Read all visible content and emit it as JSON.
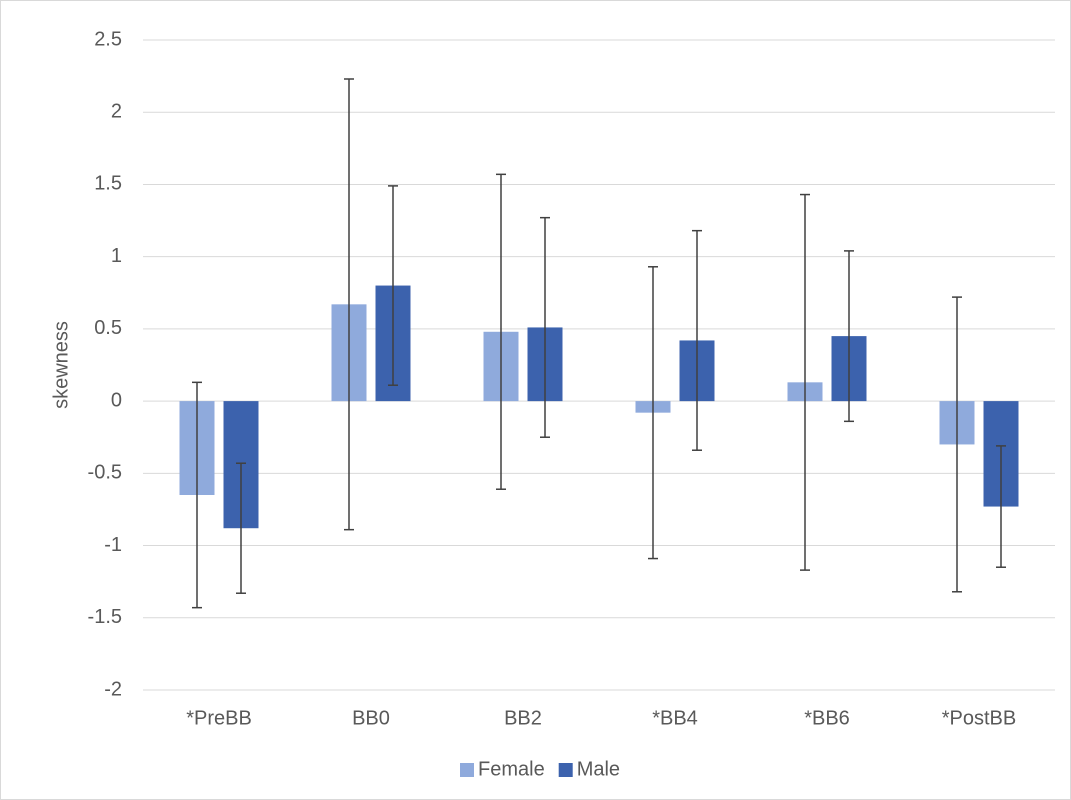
{
  "chart_data": {
    "type": "bar",
    "y_label": "skewness",
    "categories": [
      "*PreBB",
      "BB0",
      "BB2",
      "*BB4",
      "*BB6",
      "*PostBB"
    ],
    "series": [
      {
        "name": "Female",
        "color": "#8faadc",
        "values": [
          -0.65,
          0.67,
          0.48,
          -0.08,
          0.13,
          -0.3
        ],
        "errors": [
          0.78,
          1.56,
          1.09,
          1.01,
          1.3,
          1.02
        ]
      },
      {
        "name": "Male",
        "color": "#3c62ad",
        "values": [
          -0.88,
          0.8,
          0.51,
          0.42,
          0.45,
          -0.73
        ],
        "errors": [
          0.45,
          0.69,
          0.76,
          0.76,
          0.59,
          0.42
        ]
      }
    ],
    "ylim": [
      -2,
      2.5
    ],
    "yticks": [
      -2,
      -1.5,
      -1,
      -0.5,
      0,
      0.5,
      1,
      1.5,
      2,
      2.5
    ],
    "grid": true,
    "legend": "bottom"
  }
}
